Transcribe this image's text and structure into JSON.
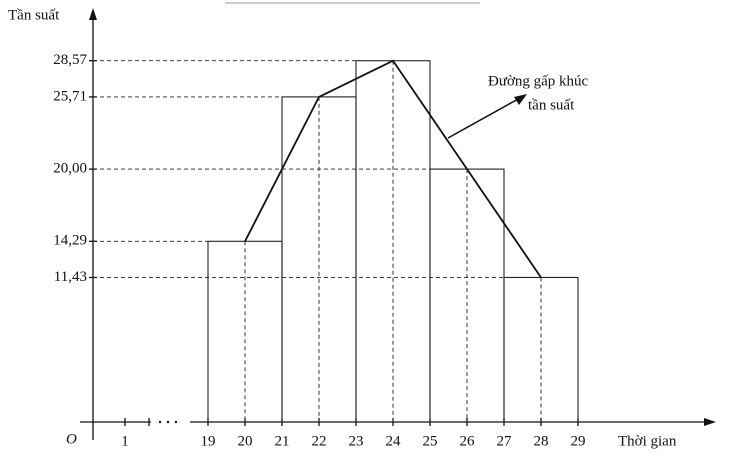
{
  "chart_data": {
    "type": "histogram",
    "y_label": "Tần suất",
    "x_label": "Thời gian",
    "origin_label": "O",
    "bins": [
      19,
      21,
      23,
      25,
      27,
      29
    ],
    "values": [
      14.29,
      25.71,
      28.57,
      20.0,
      11.43
    ],
    "frequency_polygon": true,
    "annotation": [
      "Đường gấp khúc",
      "tần suất"
    ],
    "xlim": [
      19,
      29
    ],
    "xticks": [
      1,
      19,
      20,
      21,
      22,
      23,
      24,
      25,
      26,
      27,
      28,
      29
    ],
    "axis_break": true,
    "ylim": [
      0,
      31
    ],
    "yticks": [
      {
        "value": 11.43,
        "label": "11,43"
      },
      {
        "value": 14.29,
        "label": "14,29"
      },
      {
        "value": 20.0,
        "label": "20,00"
      },
      {
        "value": 25.71,
        "label": "25,71"
      },
      {
        "value": 28.57,
        "label": "28,57"
      }
    ]
  }
}
